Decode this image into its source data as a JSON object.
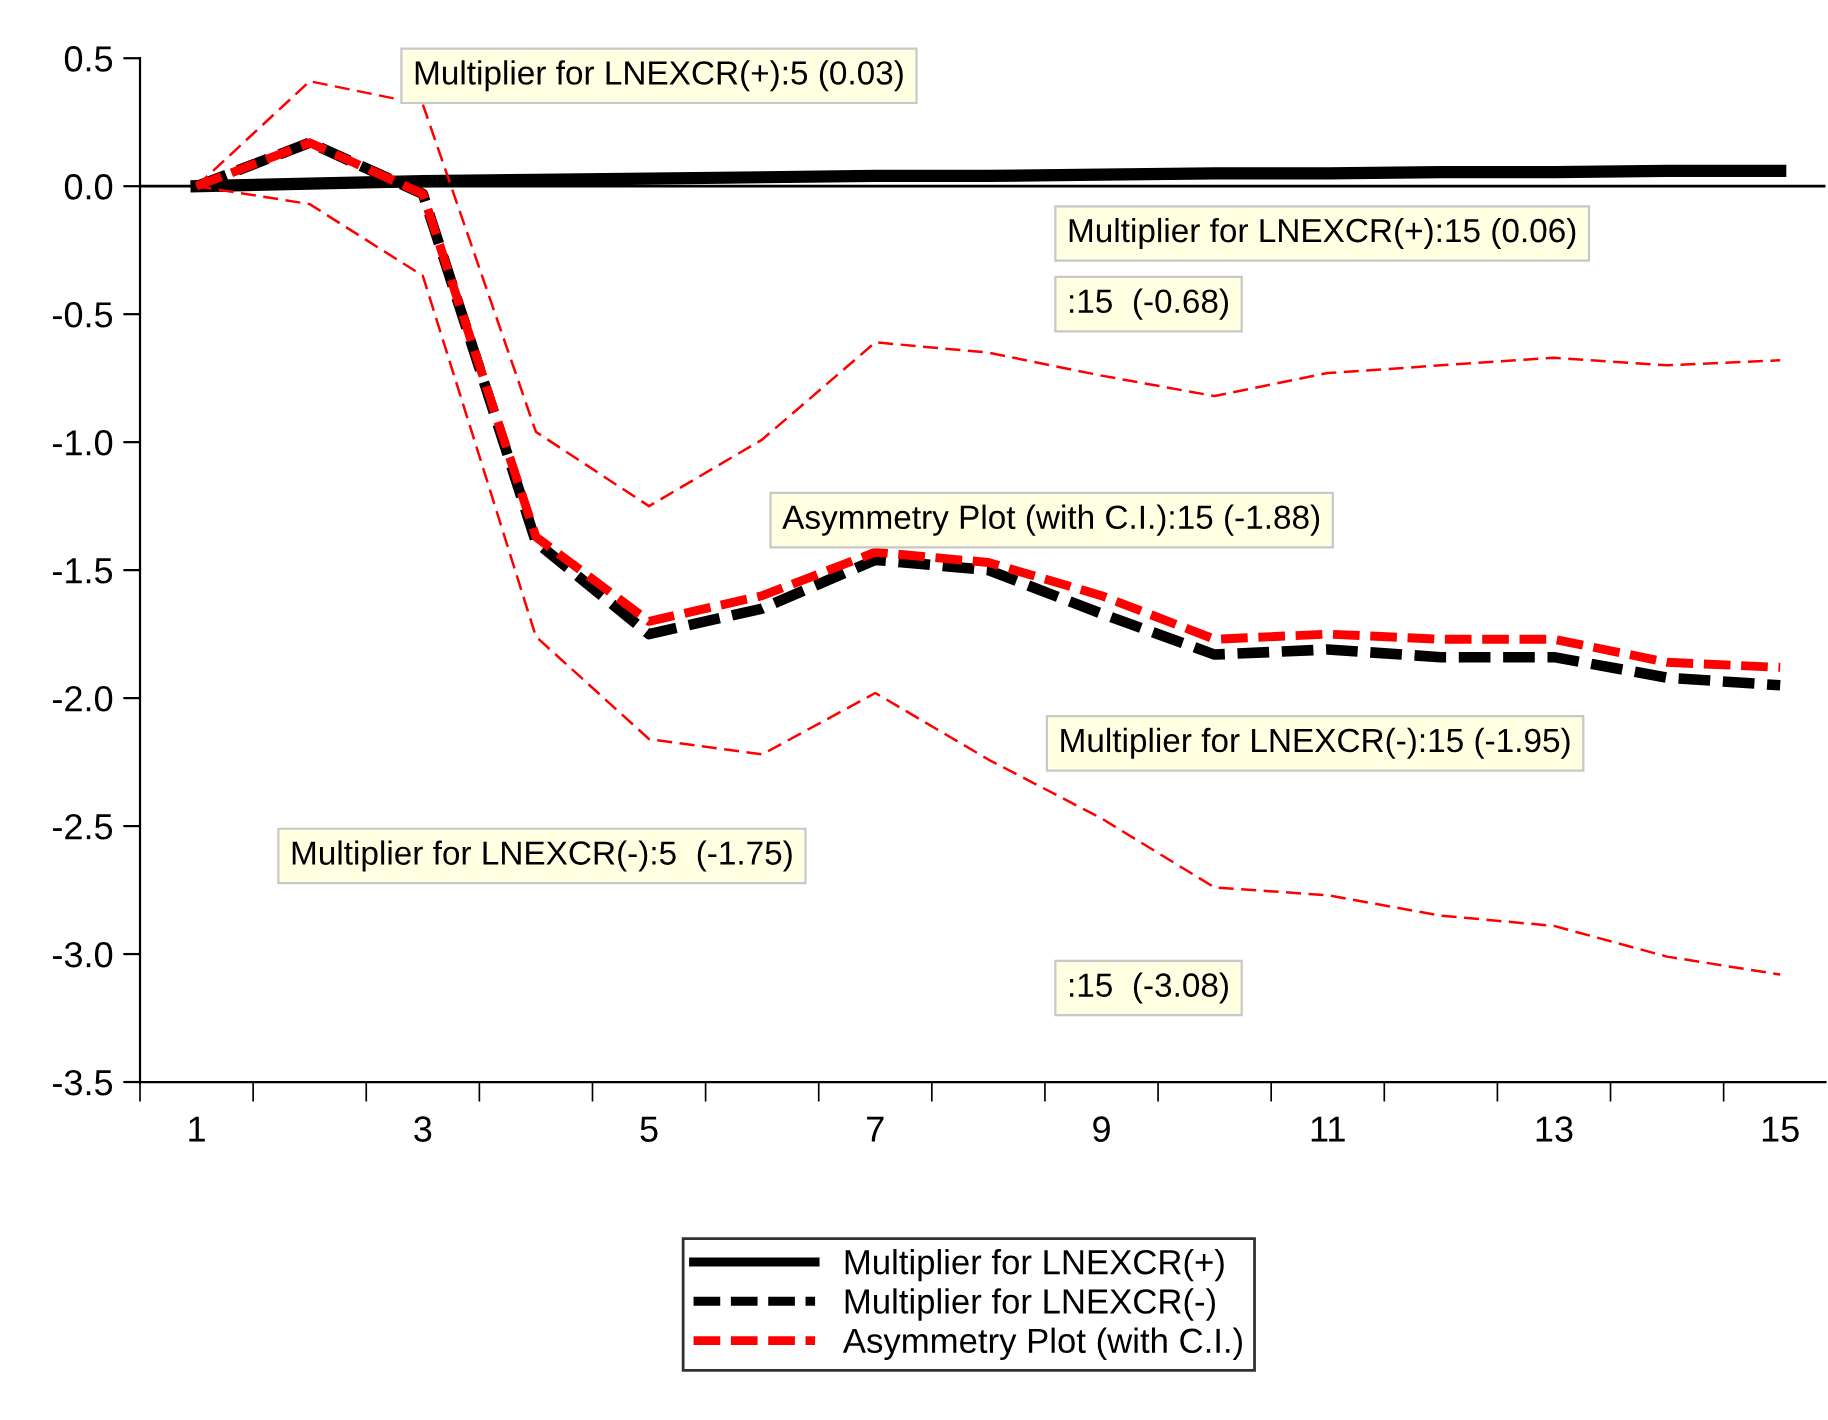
{
  "chart_data": {
    "type": "line",
    "x": [
      1,
      2,
      3,
      4,
      5,
      6,
      7,
      8,
      9,
      10,
      11,
      12,
      13,
      14,
      15
    ],
    "xlim": [
      0.5,
      15.4
    ],
    "xticks": [
      {
        "value": 0.5,
        "label": null
      },
      {
        "value": 1,
        "label": "1"
      },
      {
        "value": 1.5,
        "label": null
      },
      {
        "value": 2.5,
        "label": null
      },
      {
        "value": 3,
        "label": "3"
      },
      {
        "value": 3.5,
        "label": null
      },
      {
        "value": 4.5,
        "label": null
      },
      {
        "value": 5,
        "label": "5"
      },
      {
        "value": 5.5,
        "label": null
      },
      {
        "value": 6.5,
        "label": null
      },
      {
        "value": 7,
        "label": "7"
      },
      {
        "value": 7.5,
        "label": null
      },
      {
        "value": 8.5,
        "label": null
      },
      {
        "value": 9,
        "label": "9"
      },
      {
        "value": 9.5,
        "label": null
      },
      {
        "value": 10.5,
        "label": null
      },
      {
        "value": 11,
        "label": "11"
      },
      {
        "value": 11.5,
        "label": null
      },
      {
        "value": 12.5,
        "label": null
      },
      {
        "value": 13,
        "label": "13"
      },
      {
        "value": 13.5,
        "label": null
      },
      {
        "value": 14.5,
        "label": null
      },
      {
        "value": 15,
        "label": "15"
      }
    ],
    "ylim": [
      -3.5,
      0.5
    ],
    "yticks": [
      {
        "value": 0.5,
        "label": "0.5"
      },
      {
        "value": 0,
        "label": "0.0"
      },
      {
        "value": -0.5,
        "label": "-0.5"
      },
      {
        "value": -1,
        "label": "-1.0"
      },
      {
        "value": -1.5,
        "label": "-1.5"
      },
      {
        "value": -2,
        "label": "-2.0"
      },
      {
        "value": -2.5,
        "label": "-2.5"
      },
      {
        "value": -3,
        "label": "-3.0"
      },
      {
        "value": -3.5,
        "label": "-3.5"
      }
    ],
    "grid": false,
    "legend": "bottom",
    "ref_lines": [
      {
        "axis": "y",
        "value": 0,
        "color": "#000000",
        "line_style": "solid"
      }
    ],
    "series": [
      {
        "name": "Multiplier for LNEXCR(+)",
        "color": "#000000",
        "line_style": "solid",
        "values": [
          0,
          0.01,
          0.02,
          0.025,
          0.03,
          0.035,
          0.04,
          0.04,
          0.045,
          0.05,
          0.05,
          0.055,
          0.055,
          0.06,
          0.06
        ]
      },
      {
        "name": "Multiplier for LNEXCR(-)",
        "color": "#000000",
        "line_style": "dashed",
        "values": [
          0,
          0.17,
          -0.03,
          -1.39,
          -1.75,
          -1.65,
          -1.46,
          -1.5,
          -1.67,
          -1.83,
          -1.81,
          -1.84,
          -1.84,
          -1.92,
          -1.95
        ]
      },
      {
        "name": "Asymmetry Plot (with C.I.)",
        "color": "#ff0000",
        "line_style": "dashed",
        "values": [
          0,
          0.17,
          -0.03,
          -1.37,
          -1.7,
          -1.6,
          -1.43,
          -1.47,
          -1.6,
          -1.77,
          -1.75,
          -1.77,
          -1.77,
          -1.86,
          -1.88
        ]
      },
      {
        "color": "#ff0000",
        "line_style": "dashed",
        "values": [
          0,
          0.41,
          0.32,
          -0.96,
          -1.25,
          -0.99,
          -0.61,
          -0.65,
          -0.74,
          -0.82,
          -0.73,
          -0.7,
          -0.67,
          -0.7,
          -0.68
        ]
      },
      {
        "color": "#ff0000",
        "line_style": "dashed",
        "values": [
          0,
          -0.07,
          -0.35,
          -1.76,
          -2.16,
          -2.22,
          -1.98,
          -2.24,
          -2.47,
          -2.74,
          -2.77,
          -2.85,
          -2.89,
          -3.01,
          -3.08
        ]
      }
    ],
    "annotations": [
      "Multiplier for LNEXCR(+):5 (0.03)",
      "Multiplier for LNEXCR(+):15 (0.06)",
      ":15  (-0.68)",
      "Asymmetry Plot (with C.I.):15 (-1.88)",
      "Multiplier for LNEXCR(-):15 (-1.95)",
      "Multiplier for LNEXCR(-):5  (-1.75)",
      ":15  (-3.08)"
    ]
  }
}
